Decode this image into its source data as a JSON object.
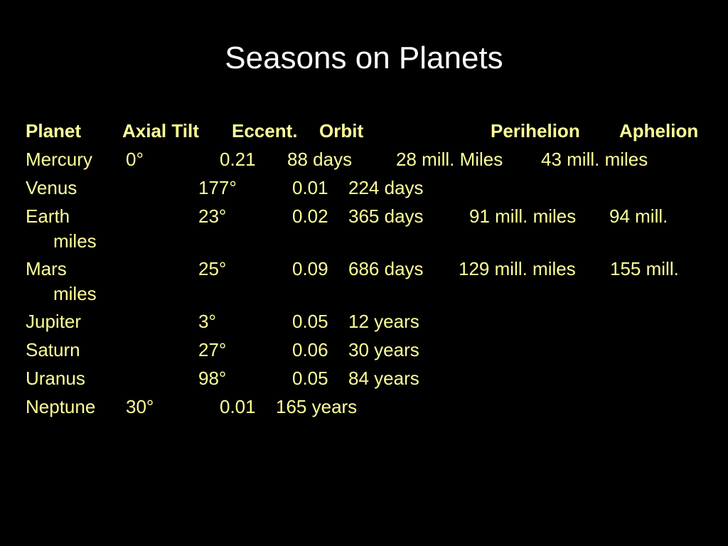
{
  "header": {
    "title": "Seasons on Planets"
  },
  "table": {
    "columns": [
      "Planet",
      "Axial Tilt",
      "Eccent.",
      "Orbit",
      "Perihelion",
      "Aphelion"
    ],
    "rows": [
      [
        "Mercury",
        "0°",
        "0.21",
        "88 days",
        "28 mill. Miles",
        "43 mill. miles"
      ],
      [
        "Venus",
        "177°",
        "0.01",
        "224 days"
      ],
      [
        "Earth",
        "23°",
        "0.02",
        "365 days",
        "91 mill. miles",
        "94 mill. miles"
      ],
      [
        "Mars",
        "25°",
        "0.09",
        "686 days",
        "129 mill. miles",
        "155 mill. miles"
      ],
      [
        "Jupiter",
        "3°",
        "0.05",
        "12 years"
      ],
      [
        "Saturn",
        "27°",
        "0.06",
        "30 years"
      ],
      [
        "Uranus",
        "98°",
        "0.05",
        "84 years"
      ],
      [
        "Neptune",
        "30°",
        "0.01",
        "165 years"
      ]
    ]
  }
}
